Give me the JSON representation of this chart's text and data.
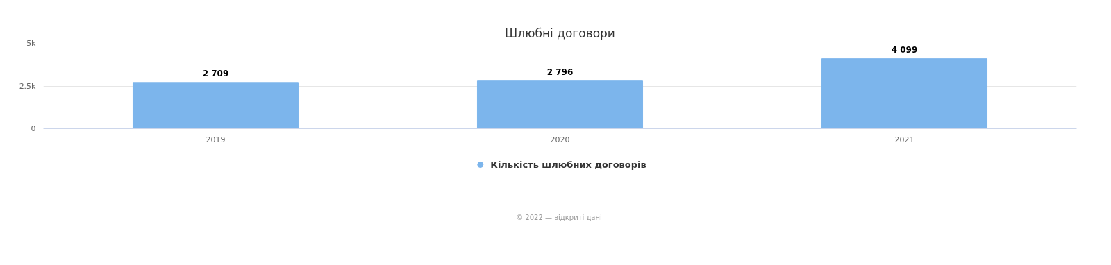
{
  "chart_data": {
    "type": "bar",
    "title": "Шлюбні договори",
    "categories": [
      "2019",
      "2020",
      "2021"
    ],
    "series": [
      {
        "name": "Кількість шлюбних договорів",
        "color": "#7cb5ec",
        "values": [
          2709,
          2796,
          4099
        ],
        "value_labels": [
          "2 709",
          "2 796",
          "4 099"
        ]
      }
    ],
    "ylim": [
      0,
      5000
    ],
    "yticks": [
      0,
      {
        "value": 2500,
        "label": "2.5k"
      },
      {
        "value": 5000,
        "label": "5k"
      }
    ],
    "grid": "y",
    "legend": "bottom",
    "annotations": [
      "© 2022 — відкриті дані"
    ]
  }
}
